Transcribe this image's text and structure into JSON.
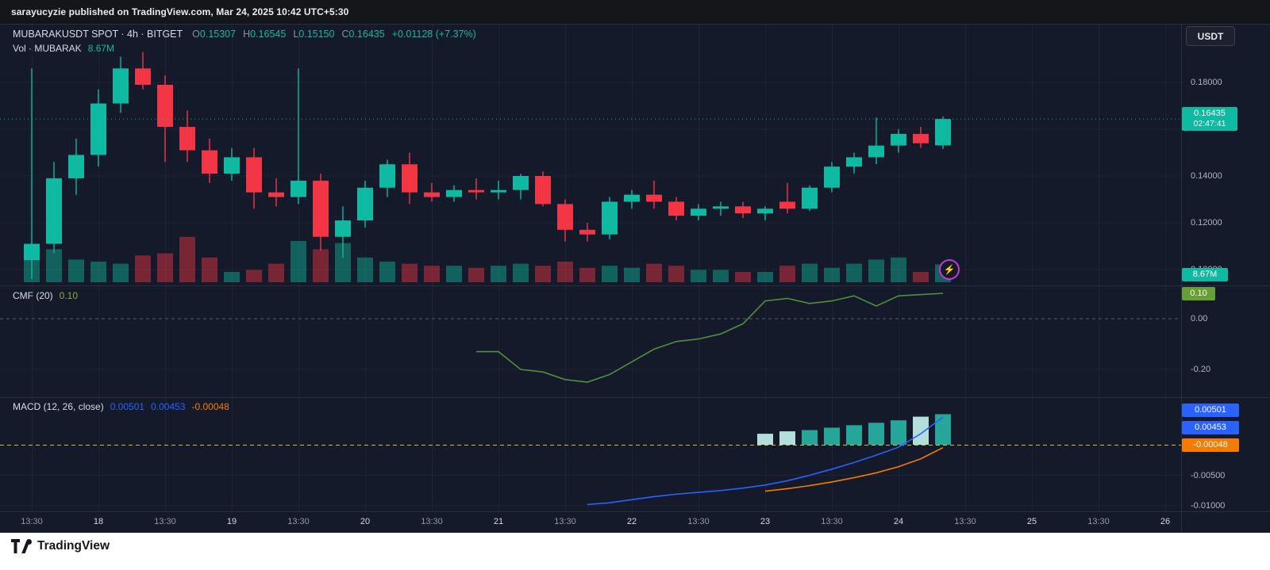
{
  "publish_bar": {
    "text": "sarayucyzie published on TradingView.com, Mar 24, 2025 10:42 UTC+5:30"
  },
  "header": {
    "symbol_title": "MUBARAKUSDT SPOT · 4h · BITGET",
    "ohlc": {
      "o_key": "O",
      "o_val": "0.15307",
      "h_key": "H",
      "h_val": "0.16545",
      "l_key": "L",
      "l_val": "0.15150",
      "c_key": "C",
      "c_val": "0.16435",
      "change": "+0.01128 (+7.37%)"
    },
    "volume_line": {
      "label": "Vol · MUBARAK",
      "value": "8.67M"
    },
    "currency_button": "USDT"
  },
  "panes": {
    "cmf": {
      "label": "CMF (20)",
      "value": "0.10",
      "badge": "0.10"
    },
    "macd": {
      "label": "MACD (12, 26, close)",
      "values": [
        "0.00501",
        "0.00453",
        "-0.00048"
      ],
      "badges": [
        "0.00501",
        "0.00453",
        "-0.00048"
      ]
    }
  },
  "price_badge": {
    "price": "0.16435",
    "countdown": "02:47:41",
    "volume": "8.67M"
  },
  "footer": {
    "brand": "TradingView"
  },
  "colors": {
    "up": "#0fb9a2",
    "down": "#f23645",
    "vol_up": "rgba(15,185,162,0.45)",
    "vol_down": "rgba(242,54,69,0.45)",
    "grid": "rgba(255,255,255,0.045)",
    "separator": "rgba(255,255,255,0.09)",
    "cmf_line": "#4f8f3e",
    "cmf_value_text": "#8aab3c",
    "cmf_zero": "#555d70",
    "cmf_badge_bg": "#669f33",
    "macd_line": "#2962ff",
    "signal_line": "#f57c00",
    "macd_zero": "#cdbf4e",
    "badge_blue": "#2962ff",
    "badge_orange": "#f57c00",
    "axis_text": "#b2b5be"
  },
  "chart_data": {
    "type": "candlestick",
    "symbol": "MUBARAKUSDT",
    "market": "SPOT",
    "interval": "4h",
    "exchange": "BITGET",
    "last_price": 0.16435,
    "countdown": "02:47:41",
    "volume_unit": "M",
    "last_volume": 8.67,
    "candles": [
      [
        0.104,
        0.186,
        0.096,
        0.111,
        18
      ],
      [
        0.111,
        0.146,
        0.107,
        0.139,
        16
      ],
      [
        0.139,
        0.156,
        0.132,
        0.149,
        11
      ],
      [
        0.149,
        0.177,
        0.144,
        0.171,
        10
      ],
      [
        0.171,
        0.191,
        0.167,
        0.186,
        9
      ],
      [
        0.186,
        0.193,
        0.177,
        0.179,
        13
      ],
      [
        0.179,
        0.183,
        0.146,
        0.161,
        14
      ],
      [
        0.161,
        0.168,
        0.146,
        0.151,
        22
      ],
      [
        0.151,
        0.156,
        0.137,
        0.141,
        12
      ],
      [
        0.141,
        0.152,
        0.138,
        0.148,
        5
      ],
      [
        0.148,
        0.152,
        0.126,
        0.133,
        6
      ],
      [
        0.133,
        0.139,
        0.127,
        0.131,
        9
      ],
      [
        0.131,
        0.186,
        0.128,
        0.138,
        20
      ],
      [
        0.138,
        0.141,
        0.108,
        0.114,
        16
      ],
      [
        0.114,
        0.127,
        0.105,
        0.121,
        19
      ],
      [
        0.121,
        0.138,
        0.118,
        0.135,
        12
      ],
      [
        0.135,
        0.147,
        0.131,
        0.145,
        10
      ],
      [
        0.145,
        0.15,
        0.128,
        0.133,
        9
      ],
      [
        0.133,
        0.137,
        0.129,
        0.131,
        8
      ],
      [
        0.131,
        0.136,
        0.129,
        0.134,
        8
      ],
      [
        0.134,
        0.139,
        0.13,
        0.133,
        7
      ],
      [
        0.133,
        0.138,
        0.13,
        0.134,
        8
      ],
      [
        0.134,
        0.141,
        0.13,
        0.14,
        9
      ],
      [
        0.14,
        0.142,
        0.127,
        0.128,
        8
      ],
      [
        0.128,
        0.13,
        0.112,
        0.117,
        10
      ],
      [
        0.117,
        0.12,
        0.112,
        0.115,
        7
      ],
      [
        0.115,
        0.131,
        0.113,
        0.129,
        8
      ],
      [
        0.129,
        0.134,
        0.126,
        0.132,
        7
      ],
      [
        0.132,
        0.138,
        0.126,
        0.129,
        9
      ],
      [
        0.129,
        0.131,
        0.121,
        0.123,
        8
      ],
      [
        0.123,
        0.128,
        0.121,
        0.126,
        6
      ],
      [
        0.126,
        0.129,
        0.123,
        0.127,
        6
      ],
      [
        0.127,
        0.129,
        0.122,
        0.124,
        5
      ],
      [
        0.124,
        0.127,
        0.121,
        0.126,
        5
      ],
      [
        0.129,
        0.137,
        0.124,
        0.126,
        8
      ],
      [
        0.126,
        0.136,
        0.125,
        0.135,
        9
      ],
      [
        0.135,
        0.146,
        0.133,
        0.144,
        7
      ],
      [
        0.144,
        0.15,
        0.141,
        0.148,
        9
      ],
      [
        0.148,
        0.165,
        0.145,
        0.153,
        11
      ],
      [
        0.153,
        0.16,
        0.15,
        0.158,
        12
      ],
      [
        0.158,
        0.161,
        0.152,
        0.154,
        5
      ],
      [
        0.15307,
        0.16545,
        0.1515,
        0.16435,
        8.67
      ]
    ],
    "axes": {
      "main": [
        {
          "label": "0.18000",
          "price": 0.18
        },
        {
          "label": "0.14000",
          "price": 0.14
        },
        {
          "label": "0.12000",
          "price": 0.12
        },
        {
          "label": "0.10000",
          "price": 0.1
        }
      ],
      "main_grid_prices": [
        0.18,
        0.16,
        0.14,
        0.12,
        0.1
      ],
      "cmf": [
        {
          "label": "0.00",
          "value": 0
        },
        {
          "label": "-0.20",
          "value": -0.2
        }
      ],
      "macd": [
        {
          "label": "-0.00500",
          "value": -0.005
        },
        {
          "label": "-0.01000",
          "value": -0.01
        }
      ]
    },
    "time_axis": {
      "ticks": [
        {
          "label": "13:30",
          "major": false
        },
        {
          "label": "18",
          "major": true
        },
        {
          "label": "13:30",
          "major": false
        },
        {
          "label": "19",
          "major": true
        },
        {
          "label": "13:30",
          "major": false
        },
        {
          "label": "20",
          "major": true
        },
        {
          "label": "13:30",
          "major": false
        },
        {
          "label": "21",
          "major": true
        },
        {
          "label": "13:30",
          "major": false
        },
        {
          "label": "22",
          "major": true
        },
        {
          "label": "13:30",
          "major": false
        },
        {
          "label": "23",
          "major": true
        },
        {
          "label": "13:30",
          "major": false
        },
        {
          "label": "24",
          "major": true
        },
        {
          "label": "13:30",
          "major": false
        },
        {
          "label": "25",
          "major": true
        },
        {
          "label": "13:30",
          "major": false
        },
        {
          "label": "26",
          "major": true
        }
      ]
    },
    "indicators": {
      "cmf": {
        "period": 20,
        "current": 0.1,
        "start_index": 20,
        "values": [
          -0.13,
          -0.13,
          -0.2,
          -0.21,
          -0.24,
          -0.25,
          -0.22,
          -0.17,
          -0.12,
          -0.09,
          -0.08,
          -0.06,
          -0.02,
          0.07,
          0.08,
          0.06,
          0.07,
          0.09,
          0.05,
          0.09,
          0.095,
          0.1
        ]
      },
      "macd": {
        "fast": 12,
        "slow": 26,
        "source": "close",
        "current_hist": 0.00501,
        "current_macd": 0.00453,
        "current_signal": -0.00048,
        "macd_line": {
          "start_index": 25,
          "values": [
            -0.0098,
            -0.0095,
            -0.009,
            -0.0085,
            -0.0081,
            -0.0078,
            -0.0075,
            -0.0071,
            -0.0066,
            -0.0059,
            -0.005,
            -0.004,
            -0.0029,
            -0.0017,
            -0.0004,
            0.0018,
            0.00453
          ]
        },
        "signal_line": {
          "start_index": 33,
          "values": [
            -0.0076,
            -0.0072,
            -0.0067,
            -0.0061,
            -0.0054,
            -0.0046,
            -0.0036,
            -0.0023,
            -0.00048
          ]
        },
        "histogram": {
          "start_index": 33,
          "values": [
            0.0018,
            0.0022,
            0.0024,
            0.0028,
            0.0032,
            0.0036,
            0.004,
            0.0046,
            0.00501
          ],
          "colors": [
            "#b2dfdb",
            "#b2dfdb",
            "#26a69a",
            "#26a69a",
            "#26a69a",
            "#26a69a",
            "#26a69a",
            "#b2dfdb",
            "#26a69a"
          ]
        }
      }
    }
  }
}
